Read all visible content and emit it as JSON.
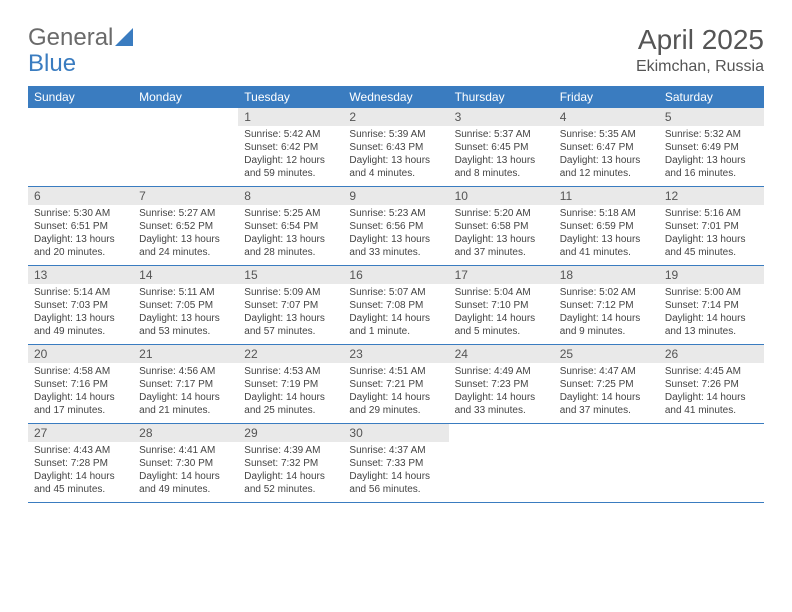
{
  "logo": {
    "text_a": "General",
    "text_b": "Blue"
  },
  "title": "April 2025",
  "location": "Ekimchan, Russia",
  "colors": {
    "header_bg": "#3a7cc0",
    "header_fg": "#ffffff",
    "daynum_bg": "#e9e9e9",
    "rule": "#3a7cc0",
    "text": "#444444",
    "logo_gray": "#6a6a6a",
    "logo_blue": "#3a7cc0"
  },
  "days_of_week": [
    "Sunday",
    "Monday",
    "Tuesday",
    "Wednesday",
    "Thursday",
    "Friday",
    "Saturday"
  ],
  "weeks": [
    [
      {
        "n": "",
        "sunrise": "",
        "sunset": "",
        "daylight": ""
      },
      {
        "n": "",
        "sunrise": "",
        "sunset": "",
        "daylight": ""
      },
      {
        "n": "1",
        "sunrise": "Sunrise: 5:42 AM",
        "sunset": "Sunset: 6:42 PM",
        "daylight": "Daylight: 12 hours and 59 minutes."
      },
      {
        "n": "2",
        "sunrise": "Sunrise: 5:39 AM",
        "sunset": "Sunset: 6:43 PM",
        "daylight": "Daylight: 13 hours and 4 minutes."
      },
      {
        "n": "3",
        "sunrise": "Sunrise: 5:37 AM",
        "sunset": "Sunset: 6:45 PM",
        "daylight": "Daylight: 13 hours and 8 minutes."
      },
      {
        "n": "4",
        "sunrise": "Sunrise: 5:35 AM",
        "sunset": "Sunset: 6:47 PM",
        "daylight": "Daylight: 13 hours and 12 minutes."
      },
      {
        "n": "5",
        "sunrise": "Sunrise: 5:32 AM",
        "sunset": "Sunset: 6:49 PM",
        "daylight": "Daylight: 13 hours and 16 minutes."
      }
    ],
    [
      {
        "n": "6",
        "sunrise": "Sunrise: 5:30 AM",
        "sunset": "Sunset: 6:51 PM",
        "daylight": "Daylight: 13 hours and 20 minutes."
      },
      {
        "n": "7",
        "sunrise": "Sunrise: 5:27 AM",
        "sunset": "Sunset: 6:52 PM",
        "daylight": "Daylight: 13 hours and 24 minutes."
      },
      {
        "n": "8",
        "sunrise": "Sunrise: 5:25 AM",
        "sunset": "Sunset: 6:54 PM",
        "daylight": "Daylight: 13 hours and 28 minutes."
      },
      {
        "n": "9",
        "sunrise": "Sunrise: 5:23 AM",
        "sunset": "Sunset: 6:56 PM",
        "daylight": "Daylight: 13 hours and 33 minutes."
      },
      {
        "n": "10",
        "sunrise": "Sunrise: 5:20 AM",
        "sunset": "Sunset: 6:58 PM",
        "daylight": "Daylight: 13 hours and 37 minutes."
      },
      {
        "n": "11",
        "sunrise": "Sunrise: 5:18 AM",
        "sunset": "Sunset: 6:59 PM",
        "daylight": "Daylight: 13 hours and 41 minutes."
      },
      {
        "n": "12",
        "sunrise": "Sunrise: 5:16 AM",
        "sunset": "Sunset: 7:01 PM",
        "daylight": "Daylight: 13 hours and 45 minutes."
      }
    ],
    [
      {
        "n": "13",
        "sunrise": "Sunrise: 5:14 AM",
        "sunset": "Sunset: 7:03 PM",
        "daylight": "Daylight: 13 hours and 49 minutes."
      },
      {
        "n": "14",
        "sunrise": "Sunrise: 5:11 AM",
        "sunset": "Sunset: 7:05 PM",
        "daylight": "Daylight: 13 hours and 53 minutes."
      },
      {
        "n": "15",
        "sunrise": "Sunrise: 5:09 AM",
        "sunset": "Sunset: 7:07 PM",
        "daylight": "Daylight: 13 hours and 57 minutes."
      },
      {
        "n": "16",
        "sunrise": "Sunrise: 5:07 AM",
        "sunset": "Sunset: 7:08 PM",
        "daylight": "Daylight: 14 hours and 1 minute."
      },
      {
        "n": "17",
        "sunrise": "Sunrise: 5:04 AM",
        "sunset": "Sunset: 7:10 PM",
        "daylight": "Daylight: 14 hours and 5 minutes."
      },
      {
        "n": "18",
        "sunrise": "Sunrise: 5:02 AM",
        "sunset": "Sunset: 7:12 PM",
        "daylight": "Daylight: 14 hours and 9 minutes."
      },
      {
        "n": "19",
        "sunrise": "Sunrise: 5:00 AM",
        "sunset": "Sunset: 7:14 PM",
        "daylight": "Daylight: 14 hours and 13 minutes."
      }
    ],
    [
      {
        "n": "20",
        "sunrise": "Sunrise: 4:58 AM",
        "sunset": "Sunset: 7:16 PM",
        "daylight": "Daylight: 14 hours and 17 minutes."
      },
      {
        "n": "21",
        "sunrise": "Sunrise: 4:56 AM",
        "sunset": "Sunset: 7:17 PM",
        "daylight": "Daylight: 14 hours and 21 minutes."
      },
      {
        "n": "22",
        "sunrise": "Sunrise: 4:53 AM",
        "sunset": "Sunset: 7:19 PM",
        "daylight": "Daylight: 14 hours and 25 minutes."
      },
      {
        "n": "23",
        "sunrise": "Sunrise: 4:51 AM",
        "sunset": "Sunset: 7:21 PM",
        "daylight": "Daylight: 14 hours and 29 minutes."
      },
      {
        "n": "24",
        "sunrise": "Sunrise: 4:49 AM",
        "sunset": "Sunset: 7:23 PM",
        "daylight": "Daylight: 14 hours and 33 minutes."
      },
      {
        "n": "25",
        "sunrise": "Sunrise: 4:47 AM",
        "sunset": "Sunset: 7:25 PM",
        "daylight": "Daylight: 14 hours and 37 minutes."
      },
      {
        "n": "26",
        "sunrise": "Sunrise: 4:45 AM",
        "sunset": "Sunset: 7:26 PM",
        "daylight": "Daylight: 14 hours and 41 minutes."
      }
    ],
    [
      {
        "n": "27",
        "sunrise": "Sunrise: 4:43 AM",
        "sunset": "Sunset: 7:28 PM",
        "daylight": "Daylight: 14 hours and 45 minutes."
      },
      {
        "n": "28",
        "sunrise": "Sunrise: 4:41 AM",
        "sunset": "Sunset: 7:30 PM",
        "daylight": "Daylight: 14 hours and 49 minutes."
      },
      {
        "n": "29",
        "sunrise": "Sunrise: 4:39 AM",
        "sunset": "Sunset: 7:32 PM",
        "daylight": "Daylight: 14 hours and 52 minutes."
      },
      {
        "n": "30",
        "sunrise": "Sunrise: 4:37 AM",
        "sunset": "Sunset: 7:33 PM",
        "daylight": "Daylight: 14 hours and 56 minutes."
      },
      {
        "n": "",
        "sunrise": "",
        "sunset": "",
        "daylight": ""
      },
      {
        "n": "",
        "sunrise": "",
        "sunset": "",
        "daylight": ""
      },
      {
        "n": "",
        "sunrise": "",
        "sunset": "",
        "daylight": ""
      }
    ]
  ]
}
